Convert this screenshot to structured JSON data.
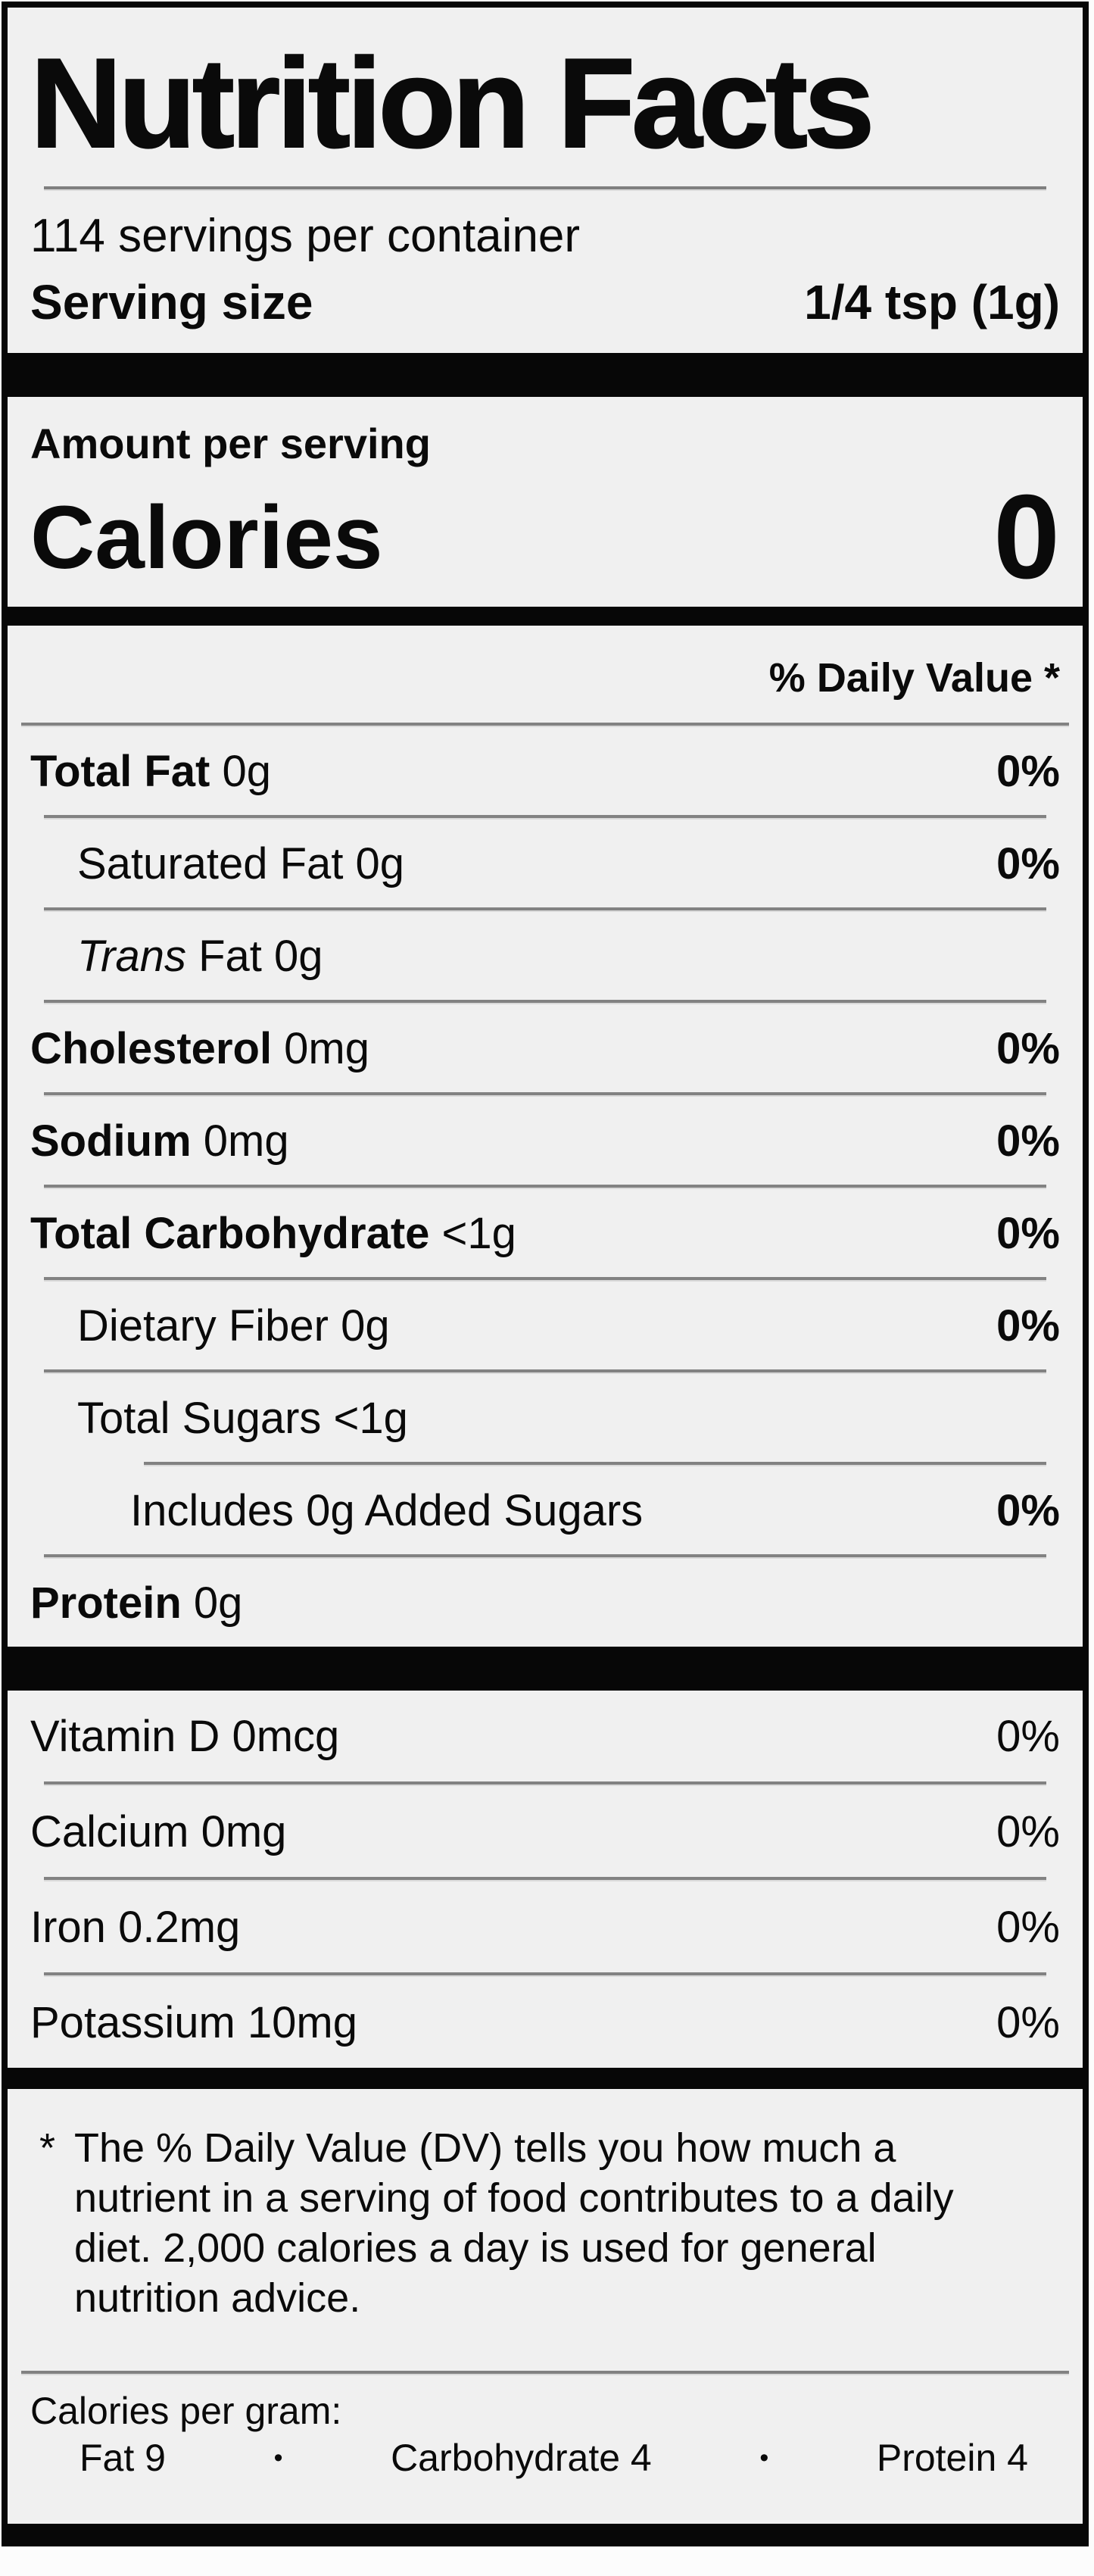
{
  "label": {
    "title": "Nutrition Facts",
    "servings_per_container": "114 servings per container",
    "serving_size_label": "Serving size",
    "serving_size_value": "1/4 tsp (1g)",
    "amount_per_serving": "Amount per serving",
    "calories_label": "Calories",
    "calories_value": "0",
    "daily_value_header": "% Daily Value *",
    "nutrients": [
      {
        "name": "Total Fat",
        "amount": "0g",
        "dv": "0%",
        "name_bold": true,
        "indent": 0,
        "first_word_italic": false,
        "sep_indent": false
      },
      {
        "name": "Saturated Fat",
        "amount": "0g",
        "dv": "0%",
        "name_bold": false,
        "indent": 1,
        "first_word_italic": false,
        "sep_indent": false
      },
      {
        "name": "Trans Fat",
        "amount": "0g",
        "dv": "",
        "name_bold": false,
        "indent": 1,
        "first_word_italic": true,
        "sep_indent": false
      },
      {
        "name": "Cholesterol",
        "amount": "0mg",
        "dv": "0%",
        "name_bold": true,
        "indent": 0,
        "first_word_italic": false,
        "sep_indent": false
      },
      {
        "name": "Sodium",
        "amount": "0mg",
        "dv": "0%",
        "name_bold": true,
        "indent": 0,
        "first_word_italic": false,
        "sep_indent": false
      },
      {
        "name": "Total Carbohydrate",
        "amount": "<1g",
        "dv": "0%",
        "name_bold": true,
        "indent": 0,
        "first_word_italic": false,
        "sep_indent": false
      },
      {
        "name": "Dietary Fiber",
        "amount": "0g",
        "dv": "0%",
        "name_bold": false,
        "indent": 1,
        "first_word_italic": false,
        "sep_indent": false
      },
      {
        "name": "Total Sugars",
        "amount": "<1g",
        "dv": "",
        "name_bold": false,
        "indent": 1,
        "first_word_italic": false,
        "sep_indent": false
      },
      {
        "name": "Includes 0g Added Sugars",
        "amount": "",
        "dv": "0%",
        "name_bold": false,
        "indent": 2,
        "first_word_italic": false,
        "sep_indent": true
      },
      {
        "name": "Protein",
        "amount": "0g",
        "dv": "",
        "name_bold": true,
        "indent": 0,
        "first_word_italic": false,
        "sep_indent": false
      }
    ],
    "vitamins": [
      {
        "name": "Vitamin D",
        "amount": "0mcg",
        "dv": "0%"
      },
      {
        "name": "Calcium",
        "amount": "0mg",
        "dv": "0%"
      },
      {
        "name": "Iron",
        "amount": "0.2mg",
        "dv": "0%"
      },
      {
        "name": "Potassium",
        "amount": "10mg",
        "dv": "0%"
      }
    ],
    "footnote_marker": "*",
    "footnote": "The % Daily Value (DV) tells you how much a nutrient in a serving of food contributes to a daily diet. 2,000 calories a day is used for general nutrition advice.",
    "calories_per_gram": {
      "heading": "Calories per gram:",
      "bullet": "•",
      "items": [
        {
          "name": "Fat",
          "value": "9"
        },
        {
          "name": "Carbohydrate",
          "value": "4"
        },
        {
          "name": "Protein",
          "value": "4"
        }
      ]
    },
    "colors": {
      "ink": "#0a0a0a",
      "label_background": "#f0f0f0",
      "separator": "#828282"
    }
  }
}
